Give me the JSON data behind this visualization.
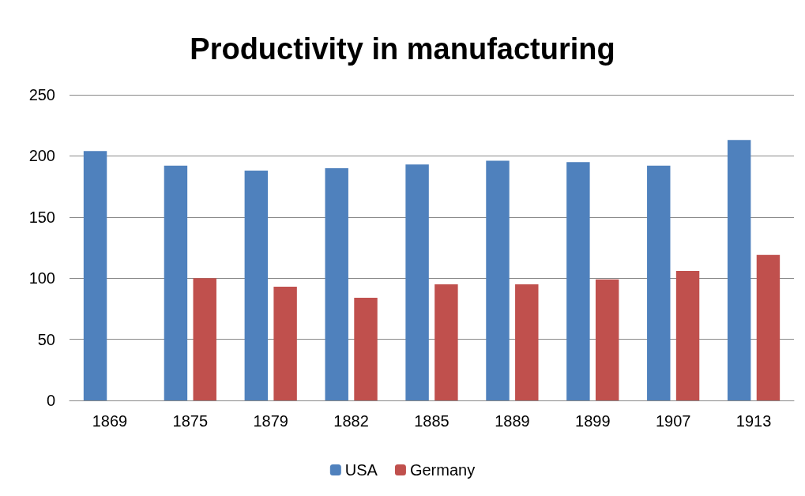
{
  "chart_data": {
    "type": "bar",
    "title": "Productivity in manufacturing",
    "categories": [
      "1869",
      "1875",
      "1879",
      "1882",
      "1885",
      "1889",
      "1899",
      "1907",
      "1913"
    ],
    "series": [
      {
        "name": "USA",
        "color": "#4f81bd",
        "values": [
          204,
          192,
          188,
          190,
          193,
          196,
          195,
          192,
          213
        ]
      },
      {
        "name": "Germany",
        "color": "#c0504d",
        "values": [
          null,
          100,
          93,
          84,
          95,
          95,
          99,
          106,
          119
        ]
      }
    ],
    "ylim": [
      0,
      250
    ],
    "yticks": [
      0,
      50,
      100,
      150,
      200,
      250
    ],
    "grid": "y",
    "legend": "bottom"
  }
}
